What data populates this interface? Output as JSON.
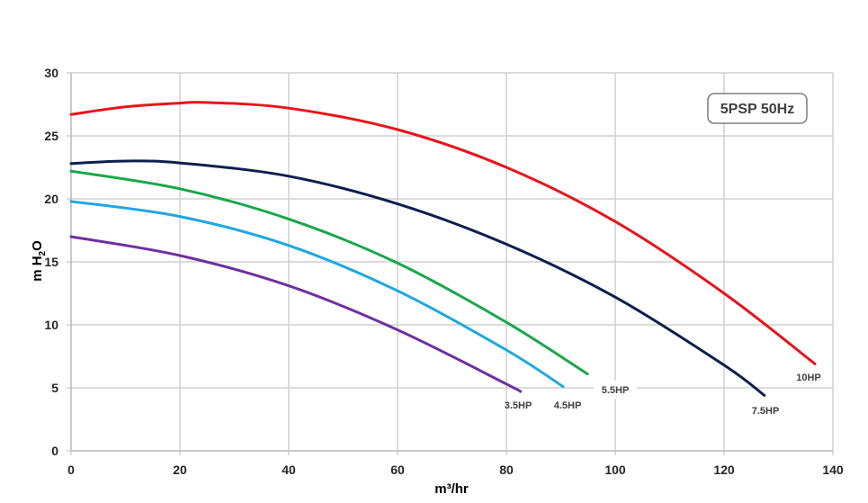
{
  "chart_data": {
    "type": "line",
    "title": "5PSP 50Hz",
    "xlabel": "m³/hr",
    "ylabel": "m H2O",
    "ylabel_parts": {
      "main": "m H",
      "sub": "2",
      "tail": "O"
    },
    "xlim": [
      0,
      140
    ],
    "ylim": [
      0,
      30
    ],
    "xticks": [
      0,
      20,
      40,
      60,
      80,
      100,
      120,
      140
    ],
    "yticks": [
      0,
      5,
      10,
      15,
      20,
      25,
      30
    ],
    "grid": true,
    "legend": "inline labels at curve ends",
    "series": [
      {
        "name": "10HP",
        "color": "#e8141b",
        "x": [
          0,
          10,
          20,
          25,
          40,
          60,
          80,
          100,
          120,
          136.7
        ],
        "y": [
          26.7,
          27.3,
          27.6,
          27.65,
          27.2,
          25.5,
          22.5,
          18.2,
          12.5,
          6.9
        ]
      },
      {
        "name": "7.5HP",
        "color": "#0d1f4f",
        "x": [
          0,
          10,
          20,
          40,
          60,
          80,
          100,
          120,
          127.4
        ],
        "y": [
          22.8,
          23.0,
          22.85,
          21.8,
          19.6,
          16.4,
          12.2,
          6.8,
          4.4
        ]
      },
      {
        "name": "5.5HP",
        "color": "#1aa64a",
        "x": [
          0,
          20,
          40,
          60,
          80,
          94.9
        ],
        "y": [
          22.2,
          20.8,
          18.4,
          14.9,
          10.2,
          6.1
        ]
      },
      {
        "name": "4.5HP",
        "color": "#1ea7e1",
        "x": [
          0,
          20,
          40,
          60,
          80,
          90.4
        ],
        "y": [
          19.8,
          18.6,
          16.3,
          12.7,
          8.0,
          5.1
        ]
      },
      {
        "name": "3.5HP",
        "color": "#7030a0",
        "x": [
          0,
          20,
          40,
          60,
          80,
          82.6
        ],
        "y": [
          17.0,
          15.5,
          13.1,
          9.6,
          5.3,
          4.7
        ]
      }
    ]
  }
}
